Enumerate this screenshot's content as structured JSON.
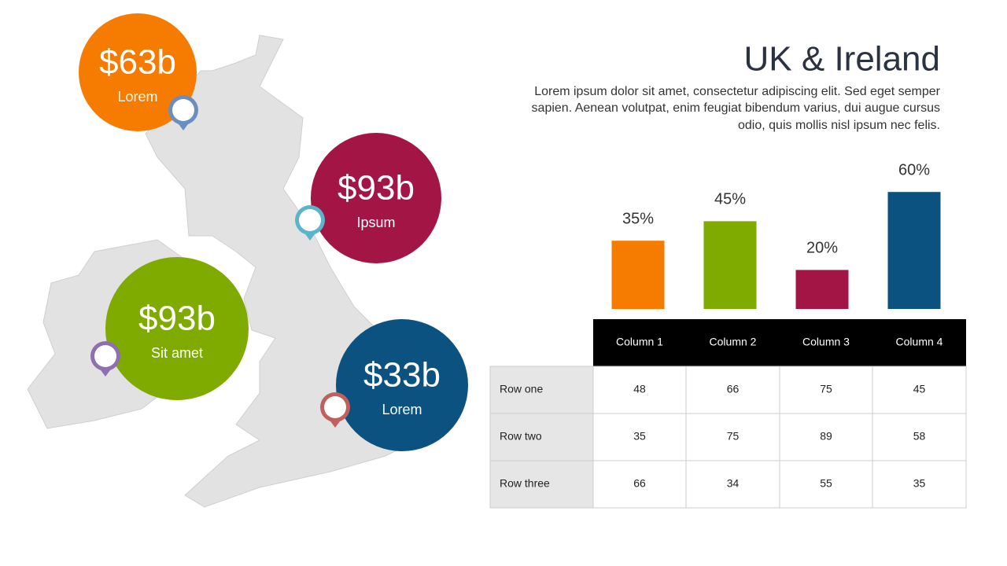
{
  "title": "UK & Ireland",
  "description": [
    "Lorem ipsum dolor sit amet, consectetur adipiscing elit. Sed eget semper",
    "sapien. Aenean volutpat, enim feugiat bibendum varius, dui augue cursus",
    "odio, quis mollis nisl ipsum nec felis."
  ],
  "bubbles": [
    {
      "value": "$63b",
      "label": "Lorem",
      "color": "#f57c00"
    },
    {
      "value": "$93b",
      "label": "Ipsum",
      "color": "#a31545"
    },
    {
      "value": "$93b",
      "label": "Sit amet",
      "color": "#7faa00"
    },
    {
      "value": "$33b",
      "label": "Lorem",
      "color": "#0b5281"
    }
  ],
  "chart_data": {
    "type": "bar",
    "values": [
      35,
      45,
      20,
      60
    ],
    "value_labels": [
      "35%",
      "45%",
      "20%",
      "60%"
    ],
    "colors": [
      "#f57c00",
      "#7faa00",
      "#a31545",
      "#0b5281"
    ]
  },
  "table": {
    "columns": [
      "Column 1",
      "Column 2",
      "Column 3",
      "Column 4"
    ],
    "rows": [
      {
        "label": "Row one",
        "values": [
          48,
          66,
          75,
          45
        ]
      },
      {
        "label": "Row two",
        "values": [
          35,
          75,
          89,
          58
        ]
      },
      {
        "label": "Row three",
        "values": [
          66,
          34,
          55,
          35
        ]
      }
    ]
  }
}
